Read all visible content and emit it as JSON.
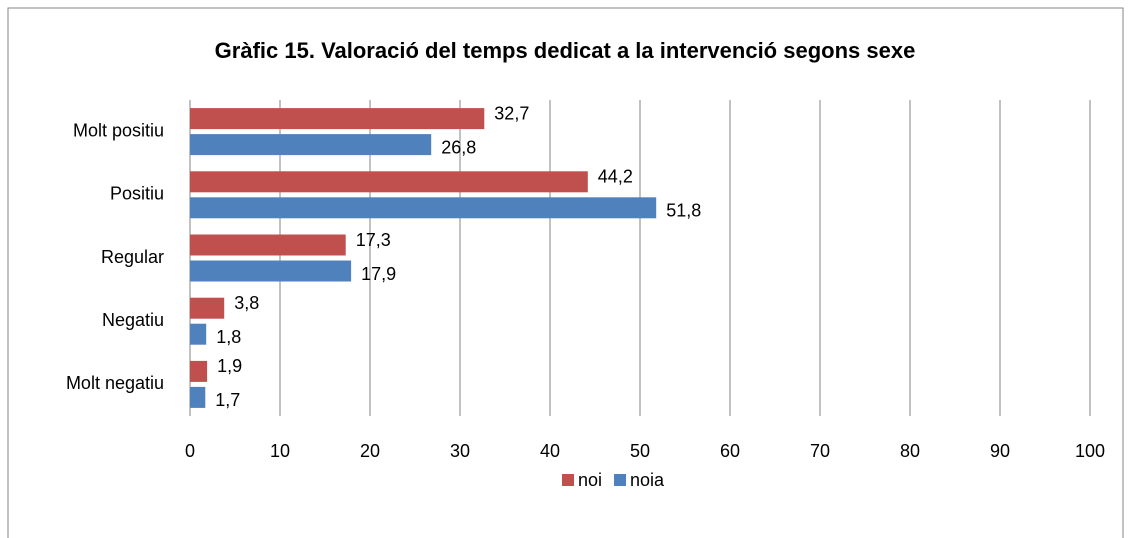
{
  "chart_data": {
    "type": "hbar",
    "title": "Gràfic 15. Valoració del temps dedicat a la intervenció segons sexe",
    "categories": [
      "Molt positiu",
      "Positiu",
      "Regular",
      "Negatiu",
      "Molt negatiu"
    ],
    "series": [
      {
        "name": "noi",
        "color": "#c0504d",
        "values": [
          32.7,
          44.2,
          17.3,
          3.8,
          1.9
        ],
        "value_labels": [
          "32,7",
          "44,2",
          "17,3",
          "3,8",
          "1,9"
        ]
      },
      {
        "name": "noia",
        "color": "#4f81bd",
        "values": [
          26.8,
          51.8,
          17.9,
          1.8,
          1.7
        ],
        "value_labels": [
          "26,8",
          "51,8",
          "17,9",
          "1,8",
          "1,7"
        ]
      }
    ],
    "xlim": [
      0,
      100
    ],
    "xticks": [
      0,
      10,
      20,
      30,
      40,
      50,
      60,
      70,
      80,
      90,
      100
    ],
    "grid": true,
    "legend": "bottom"
  }
}
